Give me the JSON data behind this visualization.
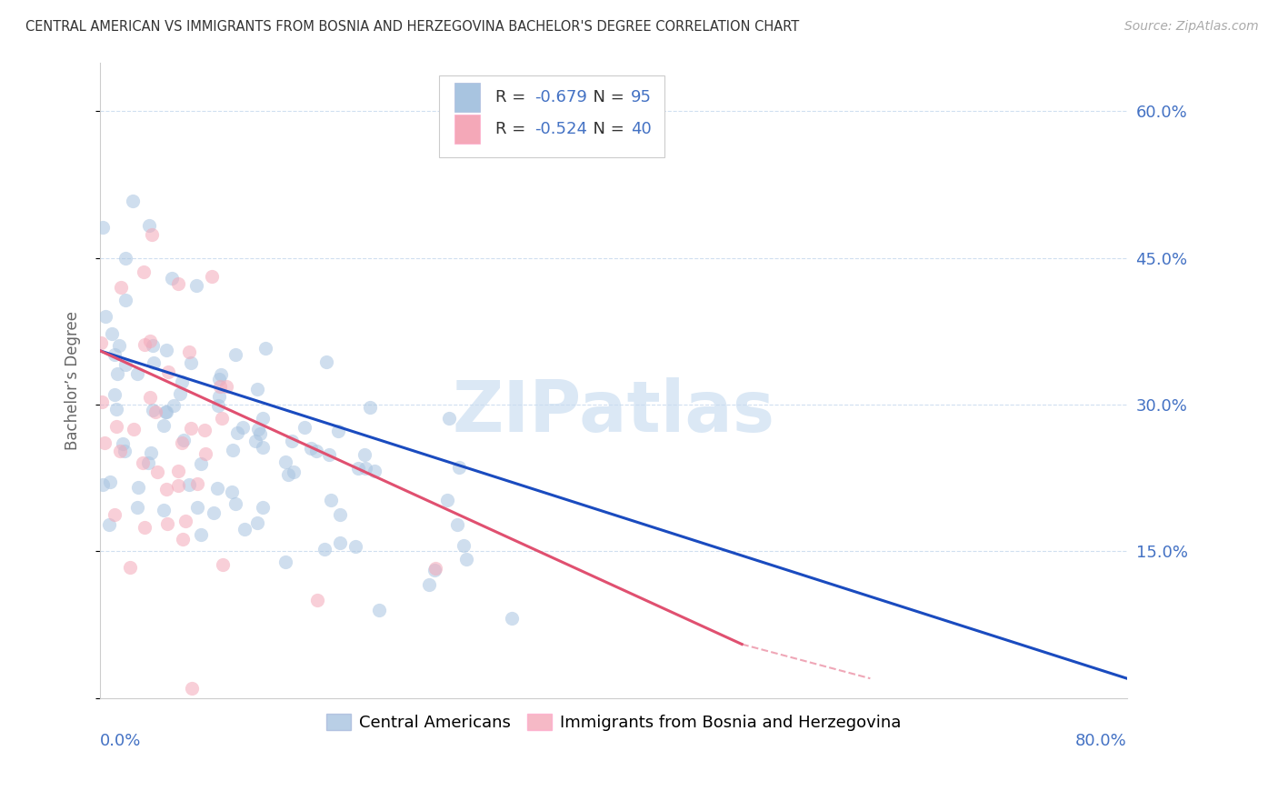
{
  "title": "CENTRAL AMERICAN VS IMMIGRANTS FROM BOSNIA AND HERZEGOVINA BACHELOR'S DEGREE CORRELATION CHART",
  "source": "Source: ZipAtlas.com",
  "ylabel": "Bachelor’s Degree",
  "watermark": "ZIPatlas",
  "xlim": [
    0.0,
    0.8
  ],
  "ylim": [
    0.0,
    0.65
  ],
  "yticks": [
    0.15,
    0.3,
    0.45,
    0.6
  ],
  "ytick_labels": [
    "15.0%",
    "30.0%",
    "45.0%",
    "60.0%"
  ],
  "blue_color": "#A8C4E0",
  "pink_color": "#F4A8B8",
  "blue_line_color": "#1A4BBF",
  "pink_line_color": "#E05070",
  "axis_color": "#4472C4",
  "grid_color": "#D0DFF0",
  "background_color": "#FFFFFF",
  "title_color": "#333333",
  "source_color": "#AAAAAA",
  "seed": 42,
  "n_blue": 95,
  "n_pink": 40,
  "blue_r": -0.679,
  "pink_r": -0.524,
  "blue_line": [
    0.0,
    0.355,
    0.8,
    0.02
  ],
  "pink_line_solid": [
    0.0,
    0.355,
    0.5,
    0.055
  ],
  "pink_line_dash": [
    0.5,
    0.055,
    0.6,
    0.02
  ],
  "legend_blue_r": "-0.679",
  "legend_blue_n": "95",
  "legend_pink_r": "-0.524",
  "legend_pink_n": "40",
  "legend_text_color": "#333333",
  "legend_value_color": "#4472C4"
}
